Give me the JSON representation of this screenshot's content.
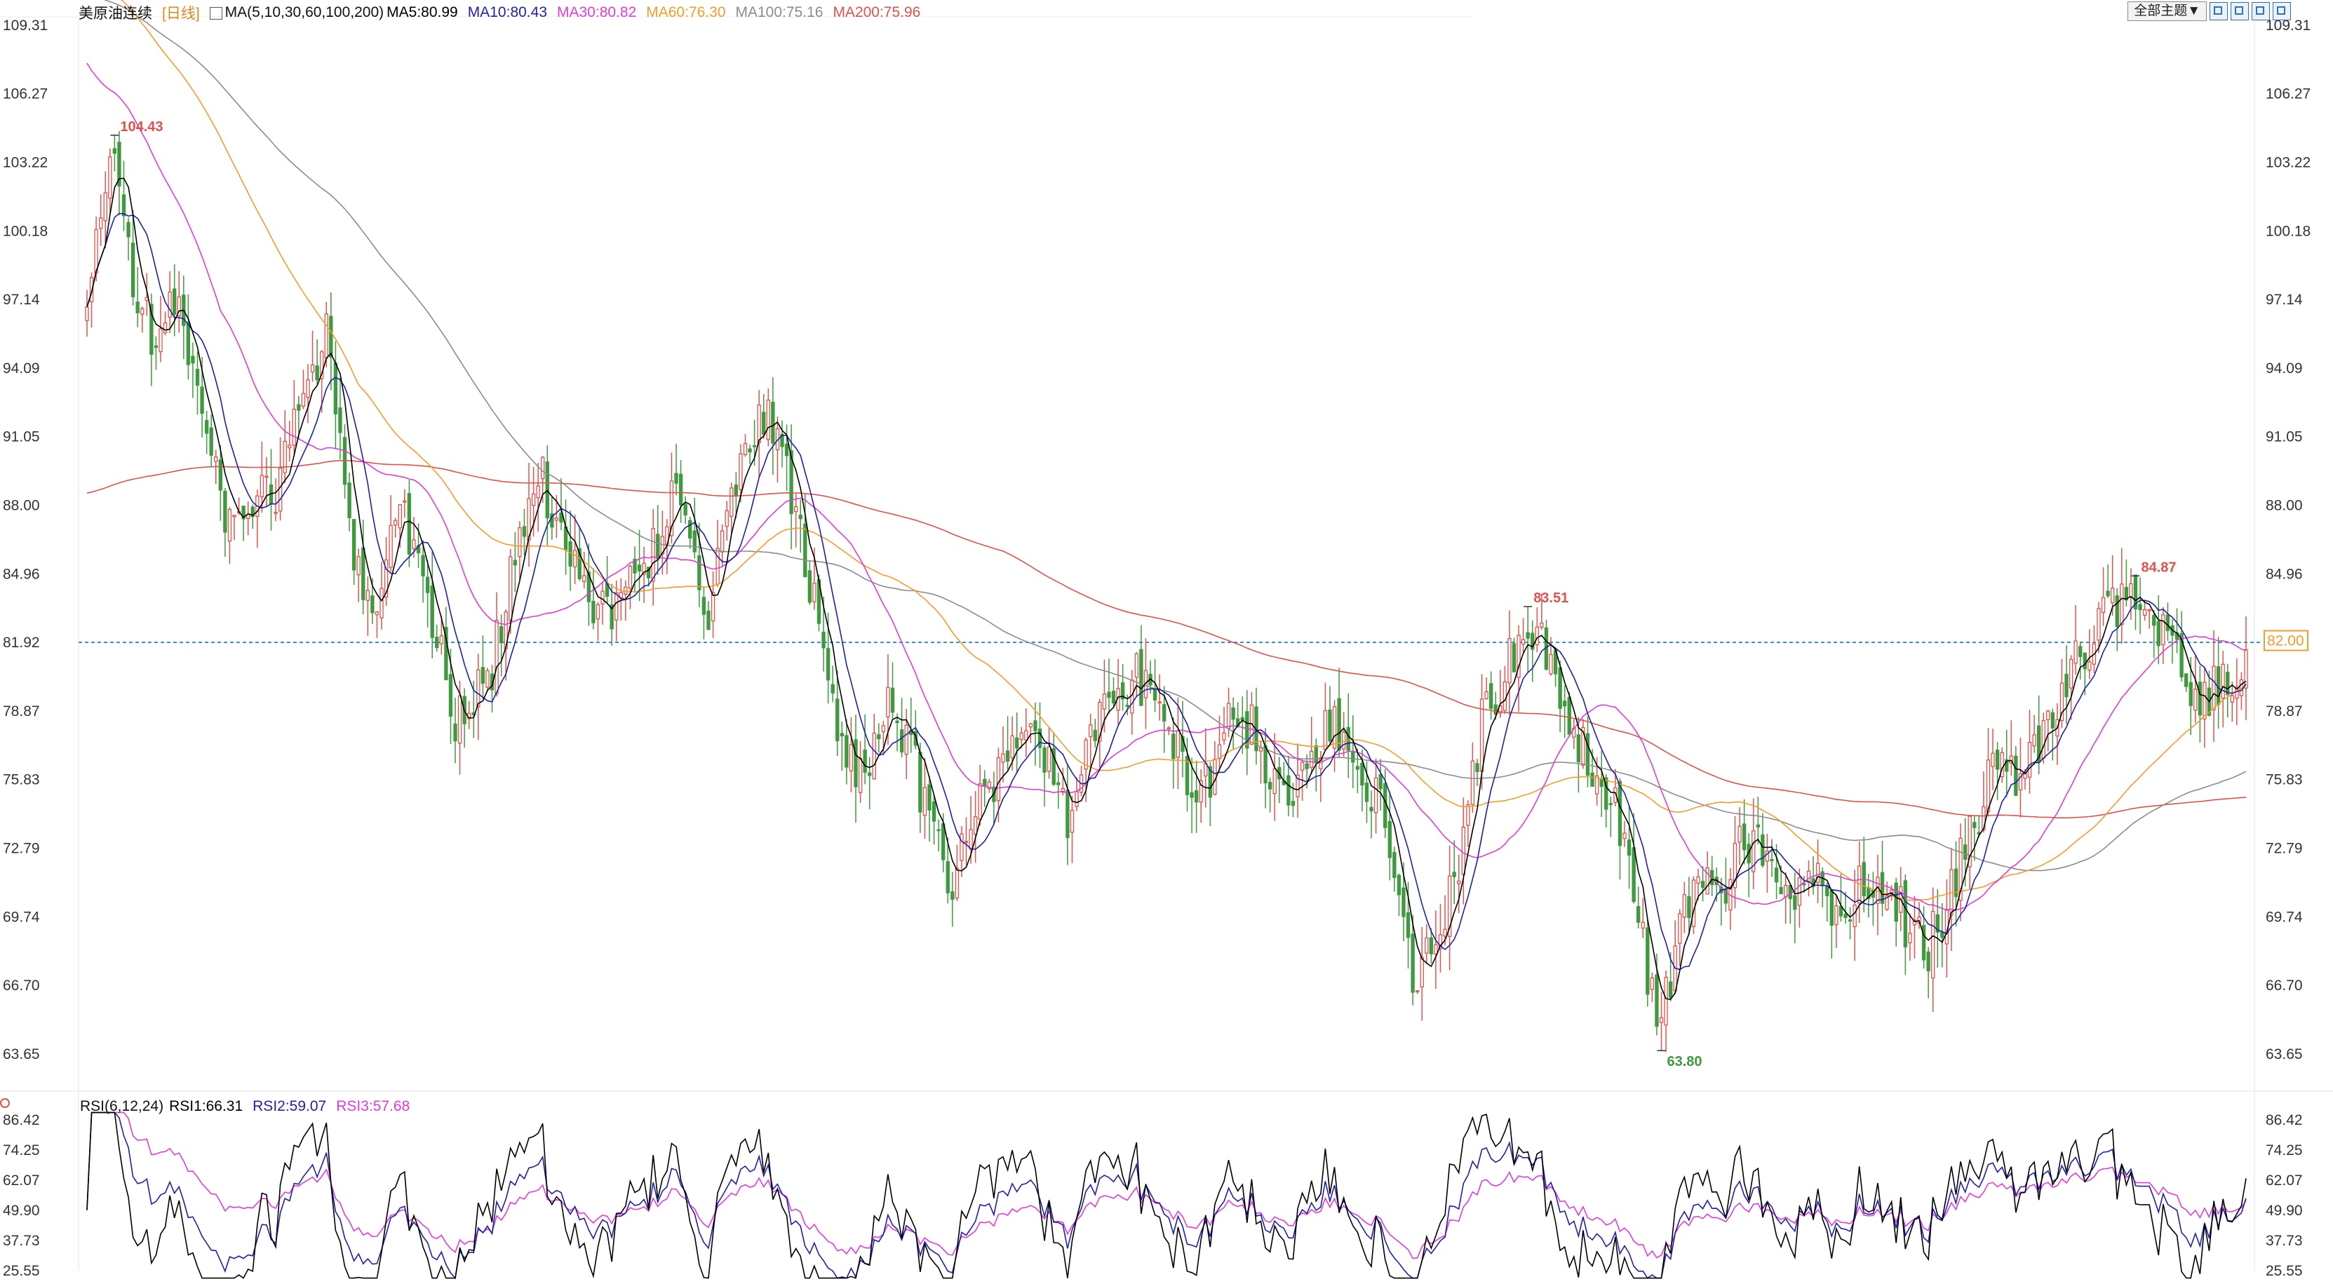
{
  "main_legend": {
    "instrument": "美原油连续",
    "period": "[日线]",
    "ma_params": "MA(5,10,30,60,100,200)",
    "items": [
      {
        "text": "MA5:80.99",
        "color": "#000000"
      },
      {
        "text": "MA10:80.43",
        "color": "#1f1fa8"
      },
      {
        "text": "MA30:80.82",
        "color": "#e23bd9"
      },
      {
        "text": "MA60:76.30",
        "color": "#f39c2a"
      },
      {
        "text": "MA100:75.16",
        "color": "#8c8c8c"
      },
      {
        "text": "MA200:75.96",
        "color": "#e0524b"
      }
    ]
  },
  "toolbar": {
    "theme_label": "全部主题▼"
  },
  "price_axis": {
    "ticks": [
      "109.31",
      "106.27",
      "103.22",
      "100.18",
      "97.14",
      "94.09",
      "91.05",
      "88.00",
      "84.96",
      "81.92",
      "78.87",
      "75.83",
      "72.79",
      "69.74",
      "66.70",
      "63.65"
    ],
    "current_price_label": "82.00",
    "current_price": 82.0,
    "crosshair_price": 81.92
  },
  "rsi_legend": {
    "params": "RSI(6,12,24)",
    "items": [
      {
        "text": "RSI1:66.31",
        "color": "#000000"
      },
      {
        "text": "RSI2:59.07",
        "color": "#1f1fa8"
      },
      {
        "text": "RSI3:57.68",
        "color": "#e23bd9"
      }
    ]
  },
  "rsi_axis": {
    "ticks": [
      "86.42",
      "74.25",
      "62.07",
      "49.90",
      "37.73",
      "25.55"
    ]
  },
  "annotations": [
    {
      "text": "104.43",
      "type": "high",
      "color": "#e0524b"
    },
    {
      "text": "83.51",
      "type": "high",
      "color": "#e0524b"
    },
    {
      "text": "63.80",
      "type": "low",
      "color": "#3f9a3f"
    },
    {
      "text": "84.87",
      "type": "high",
      "color": "#e0524b"
    }
  ],
  "colors": {
    "up": "#e0524b",
    "down": "#3f9a3f",
    "grid": "#dddddd",
    "crosshair": "#3a8fd6",
    "axis_text": "#333333"
  },
  "chart_data": [
    {
      "type": "candlestick",
      "title": "美原油连续 [日线]",
      "ylim": [
        62.5,
        109.31
      ],
      "grid": false,
      "legend": "top-left",
      "close_anchors": [
        [
          0,
          96.8
        ],
        [
          3,
          100.5
        ],
        [
          6,
          104.4
        ],
        [
          10,
          98.0
        ],
        [
          15,
          95.0
        ],
        [
          20,
          97.5
        ],
        [
          25,
          91.8
        ],
        [
          30,
          87.5
        ],
        [
          35,
          88.5
        ],
        [
          40,
          88.0
        ],
        [
          45,
          91.5
        ],
        [
          52,
          95.5
        ],
        [
          57,
          86.5
        ],
        [
          63,
          83.5
        ],
        [
          68,
          88.5
        ],
        [
          74,
          84.0
        ],
        [
          80,
          78.5
        ],
        [
          87,
          80.0
        ],
        [
          93,
          85.5
        ],
        [
          98,
          89.5
        ],
        [
          104,
          86.5
        ],
        [
          109,
          84.0
        ],
        [
          115,
          83.3
        ],
        [
          122,
          85.7
        ],
        [
          128,
          88.8
        ],
        [
          135,
          83.2
        ],
        [
          140,
          87.8
        ],
        [
          146,
          92.5
        ],
        [
          152,
          89.5
        ],
        [
          158,
          83.5
        ],
        [
          163,
          78.0
        ],
        [
          168,
          76.0
        ],
        [
          173,
          79.0
        ],
        [
          178,
          78.0
        ],
        [
          183,
          73.5
        ],
        [
          188,
          71.0
        ],
        [
          193,
          74.5
        ],
        [
          198,
          76.0
        ],
        [
          203,
          78.5
        ],
        [
          208,
          77.0
        ],
        [
          213,
          74.0
        ],
        [
          218,
          77.5
        ],
        [
          223,
          80.0
        ],
        [
          228,
          80.5
        ],
        [
          233,
          78.5
        ],
        [
          238,
          76.5
        ],
        [
          243,
          75.5
        ],
        [
          248,
          79.0
        ],
        [
          253,
          78.0
        ],
        [
          258,
          75.5
        ],
        [
          263,
          75.0
        ],
        [
          268,
          77.5
        ],
        [
          273,
          78.5
        ],
        [
          278,
          76.0
        ],
        [
          283,
          73.5
        ],
        [
          288,
          67.0
        ],
        [
          293,
          68.5
        ],
        [
          298,
          72.5
        ],
        [
          303,
          78.5
        ],
        [
          308,
          80.5
        ],
        [
          313,
          82.5
        ],
        [
          318,
          81.0
        ],
        [
          323,
          77.5
        ],
        [
          328,
          76.5
        ],
        [
          333,
          74.0
        ],
        [
          338,
          68.5
        ],
        [
          342,
          64.5
        ],
        [
          346,
          70.0
        ],
        [
          350,
          71.5
        ],
        [
          355,
          71.0
        ],
        [
          360,
          73.5
        ],
        [
          365,
          72.0
        ],
        [
          370,
          70.0
        ],
        [
          375,
          72.0
        ],
        [
          380,
          69.5
        ],
        [
          385,
          70.8
        ],
        [
          390,
          71.5
        ],
        [
          395,
          69.5
        ],
        [
          400,
          68.5
        ],
        [
          405,
          71.0
        ],
        [
          410,
          74.0
        ],
        [
          415,
          76.5
        ],
        [
          420,
          76.0
        ],
        [
          425,
          77.5
        ],
        [
          430,
          80.5
        ],
        [
          435,
          82.0
        ],
        [
          440,
          83.5
        ],
        [
          445,
          84.5
        ],
        [
          450,
          82.5
        ],
        [
          455,
          80.5
        ],
        [
          460,
          79.5
        ],
        [
          465,
          80.0
        ],
        [
          469,
          81.6
        ]
      ],
      "highs": [
        {
          "label": "104.43",
          "value": 104.43
        },
        {
          "label": "83.51",
          "value": 83.51
        },
        {
          "label": "84.87",
          "value": 84.87
        }
      ],
      "lows": [
        {
          "label": "63.80",
          "value": 63.8
        }
      ],
      "series": [
        {
          "name": "MA5",
          "last": 80.99
        },
        {
          "name": "MA10",
          "last": 80.43
        },
        {
          "name": "MA30",
          "last": 80.82
        },
        {
          "name": "MA60",
          "last": 76.3
        },
        {
          "name": "MA100",
          "last": 75.16
        },
        {
          "name": "MA200",
          "last": 75.96
        }
      ]
    },
    {
      "type": "line",
      "title": "RSI(6,12,24)",
      "ylim": [
        25.55,
        86.42
      ],
      "series": [
        {
          "name": "RSI1",
          "last": 66.31
        },
        {
          "name": "RSI2",
          "last": 59.07
        },
        {
          "name": "RSI3",
          "last": 57.68
        }
      ]
    }
  ]
}
